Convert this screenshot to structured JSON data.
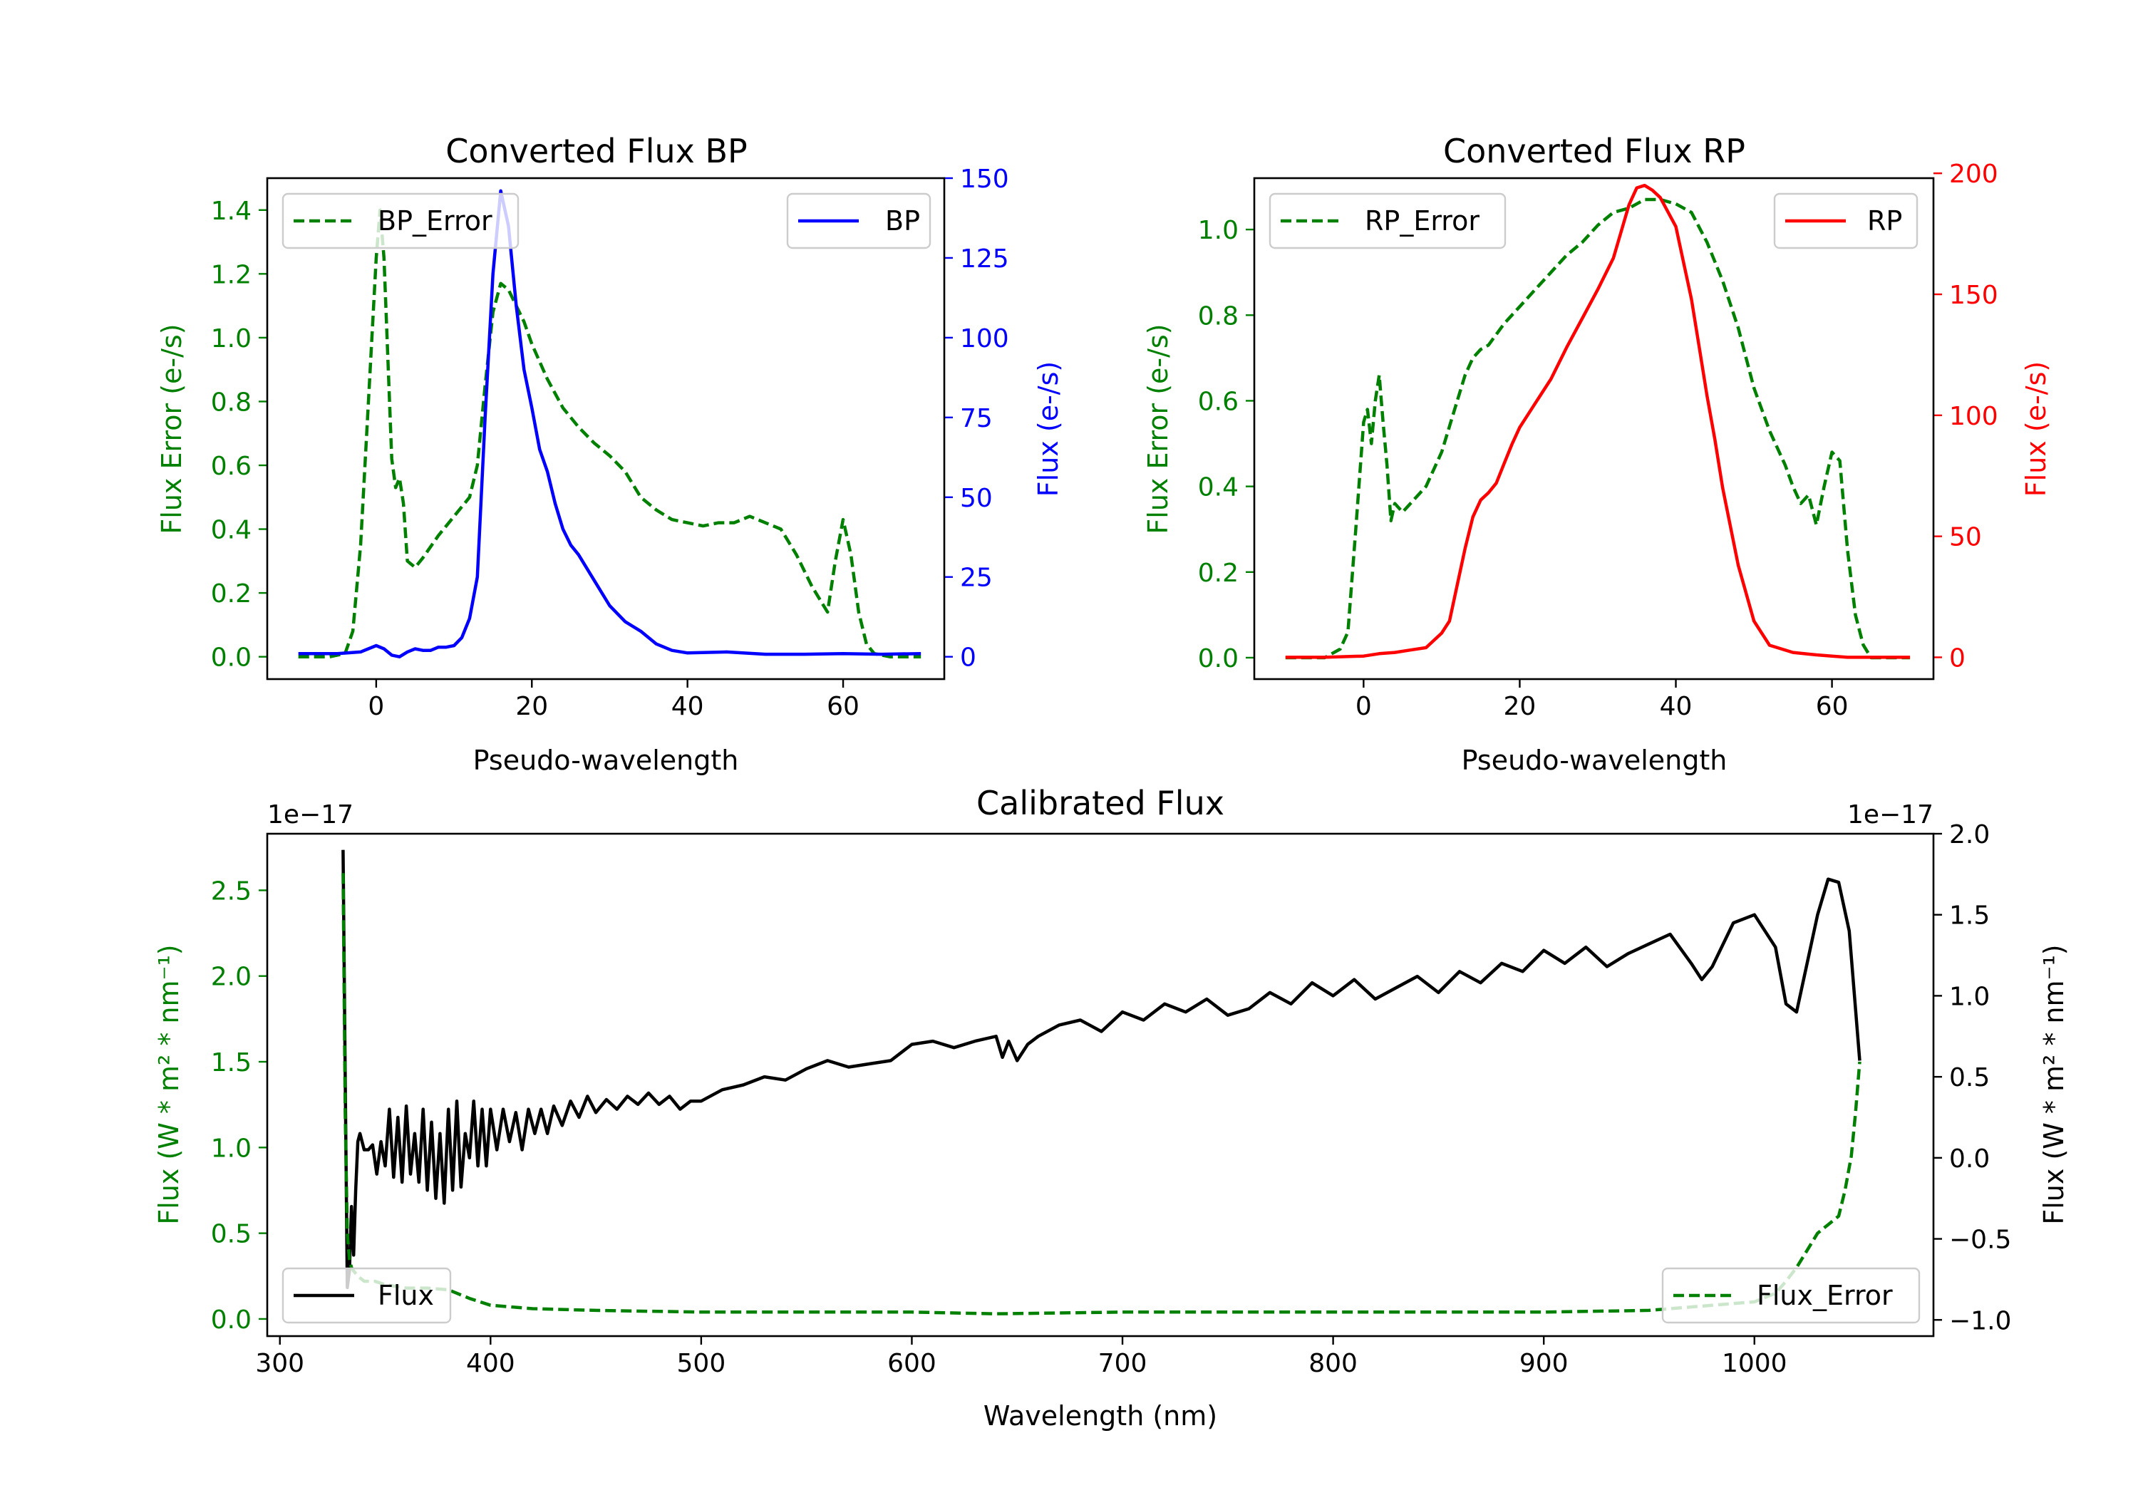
{
  "figure": {
    "colors": {
      "green": "#008000",
      "blue": "#0000ff",
      "red": "#ff0000",
      "black": "#000000"
    }
  },
  "chart_data": [
    {
      "id": "bp",
      "type": "line",
      "title": "Converted Flux BP",
      "xlabel": "Pseudo-wavelength",
      "ylabel_left": "Flux Error (e-/s)",
      "ylabel_right": "Flux (e-/s)",
      "xlim": [
        -14,
        73
      ],
      "ylim_left": [
        -0.07,
        1.5
      ],
      "ylim_right": [
        -7,
        150
      ],
      "xticks": [
        0,
        20,
        40,
        60
      ],
      "yticks_left": [
        0.0,
        0.2,
        0.4,
        0.6,
        0.8,
        1.0,
        1.2,
        1.4
      ],
      "yticks_left_labels": [
        "0.0",
        "0.2",
        "0.4",
        "0.6",
        "0.8",
        "1.0",
        "1.2",
        "1.4"
      ],
      "yticks_right": [
        0,
        25,
        50,
        75,
        100,
        125,
        150
      ],
      "yticks_right_labels": [
        "0",
        "25",
        "50",
        "75",
        "100",
        "125",
        "150"
      ],
      "legend_left": {
        "label": "BP_Error",
        "position": "upper left"
      },
      "legend_right": {
        "label": "BP",
        "position": "upper right"
      },
      "series": [
        {
          "name": "BP_Error",
          "axis": "left",
          "color": "#008000",
          "style": "dashed",
          "x": [
            -10,
            -6,
            -4,
            -3,
            -2,
            -1,
            0,
            0.5,
            1,
            2,
            2.5,
            3,
            3.5,
            4,
            5,
            6,
            8,
            10,
            12,
            13,
            14,
            15,
            16,
            17,
            18,
            19,
            20,
            22,
            24,
            26,
            28,
            30,
            32,
            34,
            36,
            38,
            40,
            42,
            44,
            46,
            48,
            50,
            52,
            54,
            56,
            57,
            58,
            59,
            60,
            61,
            62,
            63,
            64,
            66,
            70
          ],
          "values": [
            0,
            0,
            0.01,
            0.08,
            0.35,
            0.8,
            1.25,
            1.4,
            1.25,
            0.62,
            0.53,
            0.56,
            0.48,
            0.3,
            0.28,
            0.31,
            0.38,
            0.44,
            0.5,
            0.6,
            0.85,
            1.08,
            1.17,
            1.15,
            1.1,
            1.05,
            0.98,
            0.87,
            0.78,
            0.72,
            0.67,
            0.63,
            0.58,
            0.5,
            0.46,
            0.43,
            0.42,
            0.41,
            0.42,
            0.42,
            0.44,
            0.42,
            0.4,
            0.32,
            0.22,
            0.18,
            0.14,
            0.3,
            0.43,
            0.32,
            0.14,
            0.04,
            0.01,
            0,
            0
          ]
        },
        {
          "name": "BP",
          "axis": "right",
          "color": "#0000ff",
          "style": "solid",
          "x": [
            -10,
            -5,
            -2,
            0,
            1,
            2,
            3,
            4,
            5,
            6,
            7,
            8,
            9,
            10,
            11,
            12,
            13,
            14,
            15,
            16,
            17,
            18,
            19,
            20,
            21,
            22,
            23,
            24,
            25,
            26,
            27,
            28,
            30,
            32,
            34,
            36,
            38,
            40,
            45,
            50,
            55,
            60,
            65,
            70
          ],
          "values": [
            1,
            1,
            1.5,
            3.5,
            2.5,
            0.5,
            0,
            1.5,
            2.5,
            2,
            2,
            3,
            3,
            3.5,
            6,
            12,
            25,
            75,
            120,
            146,
            135,
            110,
            90,
            78,
            65,
            58,
            48,
            40,
            35,
            32,
            28,
            24,
            16,
            11,
            8,
            4,
            2,
            1.2,
            1.5,
            0.8,
            0.8,
            1,
            0.8,
            1
          ]
        }
      ]
    },
    {
      "id": "rp",
      "type": "line",
      "title": "Converted Flux RP",
      "xlabel": "Pseudo-wavelength",
      "ylabel_left": "Flux Error (e-/s)",
      "ylabel_right": "Flux (e-/s)",
      "xlim": [
        -14,
        73
      ],
      "ylim_left": [
        -0.05,
        1.12
      ],
      "ylim_right": [
        -9,
        198
      ],
      "xticks": [
        0,
        20,
        40,
        60
      ],
      "yticks_left": [
        0.0,
        0.2,
        0.4,
        0.6,
        0.8,
        1.0
      ],
      "yticks_left_labels": [
        "0.0",
        "0.2",
        "0.4",
        "0.6",
        "0.8",
        "1.0"
      ],
      "yticks_right": [
        0,
        50,
        100,
        150,
        200
      ],
      "yticks_right_labels": [
        "0",
        "50",
        "100",
        "150",
        "200"
      ],
      "legend_left": {
        "label": "RP_Error",
        "position": "upper left"
      },
      "legend_right": {
        "label": "RP",
        "position": "upper right"
      },
      "series": [
        {
          "name": "RP_Error",
          "axis": "left",
          "color": "#008000",
          "style": "dashed",
          "x": [
            -10,
            -5,
            -3,
            -2,
            -1,
            0,
            0.5,
            1,
            1.5,
            2,
            2.5,
            3,
            3.5,
            4,
            5,
            6,
            8,
            10,
            12,
            13,
            14,
            15,
            16,
            18,
            20,
            22,
            24,
            26,
            28,
            30,
            32,
            34,
            36,
            38,
            40,
            42,
            44,
            46,
            48,
            50,
            52,
            54,
            55,
            56,
            57,
            58,
            59,
            60,
            61,
            62,
            63,
            64,
            65,
            70
          ],
          "values": [
            0,
            0,
            0.02,
            0.06,
            0.3,
            0.55,
            0.58,
            0.5,
            0.6,
            0.66,
            0.55,
            0.45,
            0.32,
            0.36,
            0.34,
            0.36,
            0.4,
            0.48,
            0.6,
            0.66,
            0.7,
            0.72,
            0.73,
            0.78,
            0.82,
            0.86,
            0.9,
            0.94,
            0.97,
            1.01,
            1.04,
            1.05,
            1.07,
            1.07,
            1.06,
            1.04,
            0.97,
            0.88,
            0.77,
            0.63,
            0.53,
            0.45,
            0.4,
            0.36,
            0.38,
            0.31,
            0.4,
            0.48,
            0.46,
            0.25,
            0.1,
            0.03,
            0,
            0
          ]
        },
        {
          "name": "RP",
          "axis": "right",
          "color": "#ff0000",
          "style": "solid",
          "x": [
            -10,
            -5,
            0,
            2,
            4,
            6,
            8,
            10,
            11,
            12,
            13,
            14,
            15,
            16,
            17,
            18,
            19,
            20,
            22,
            24,
            26,
            28,
            30,
            32,
            34,
            35,
            36,
            37,
            38,
            40,
            42,
            43,
            44,
            45,
            46,
            48,
            50,
            52,
            55,
            58,
            60,
            62,
            65,
            70
          ],
          "values": [
            0,
            0,
            0.5,
            1.5,
            2,
            3,
            4,
            10,
            15,
            30,
            45,
            58,
            65,
            68,
            72,
            80,
            88,
            95,
            105,
            115,
            128,
            140,
            152,
            165,
            187,
            194,
            195,
            193,
            190,
            178,
            148,
            128,
            108,
            90,
            70,
            38,
            15,
            5,
            2,
            1,
            0.5,
            0,
            0,
            0
          ]
        }
      ]
    },
    {
      "id": "calibrated",
      "type": "line",
      "title": "Calibrated Flux",
      "xlabel": "Wavelength (nm)",
      "ylabel_left": "Flux (W * m² * nm⁻¹)",
      "ylabel_right": "Flux (W * m² * nm⁻¹)",
      "offset_left": "1e−17",
      "offset_right": "1e−17",
      "xlim": [
        294,
        1085
      ],
      "ylim_left": [
        -0.1,
        2.83
      ],
      "ylim_right": [
        -1.1,
        2.0
      ],
      "xticks": [
        300,
        400,
        500,
        600,
        700,
        800,
        900,
        1000
      ],
      "yticks_left": [
        0.0,
        0.5,
        1.0,
        1.5,
        2.0,
        2.5
      ],
      "yticks_left_labels": [
        "0.0",
        "0.5",
        "1.0",
        "1.5",
        "2.0",
        "2.5"
      ],
      "yticks_right": [
        -1.0,
        -0.5,
        0.0,
        0.5,
        1.0,
        1.5,
        2.0
      ],
      "yticks_right_labels": [
        "−1.0",
        "−0.5",
        "0.0",
        "0.5",
        "1.0",
        "1.5",
        "2.0"
      ],
      "legend_left": {
        "label": "Flux",
        "position": "lower left"
      },
      "legend_right": {
        "label": "Flux_Error",
        "position": "lower right"
      },
      "series": [
        {
          "name": "Flux",
          "axis": "right",
          "color": "#000000",
          "style": "solid",
          "x": [
            330,
            331,
            332,
            333,
            334,
            335,
            336,
            337,
            338,
            340,
            342,
            344,
            346,
            348,
            350,
            352,
            354,
            356,
            358,
            360,
            362,
            364,
            366,
            368,
            370,
            372,
            374,
            376,
            378,
            380,
            382,
            384,
            386,
            388,
            390,
            392,
            394,
            396,
            398,
            400,
            403,
            406,
            409,
            412,
            415,
            418,
            421,
            424,
            427,
            430,
            434,
            438,
            442,
            446,
            450,
            455,
            460,
            465,
            470,
            475,
            480,
            485,
            490,
            495,
            500,
            510,
            520,
            530,
            540,
            550,
            560,
            570,
            580,
            590,
            600,
            610,
            620,
            630,
            640,
            643,
            646,
            650,
            655,
            660,
            670,
            680,
            690,
            700,
            710,
            720,
            730,
            740,
            750,
            760,
            770,
            780,
            790,
            800,
            810,
            820,
            830,
            840,
            850,
            860,
            870,
            880,
            890,
            900,
            910,
            920,
            930,
            940,
            950,
            960,
            970,
            975,
            980,
            990,
            1000,
            1010,
            1015,
            1020,
            1025,
            1030,
            1035,
            1040,
            1045,
            1050
          ],
          "values": [
            1.9,
            0.5,
            -0.8,
            -0.7,
            -0.3,
            -0.6,
            -0.2,
            0.1,
            0.15,
            0.05,
            0.05,
            0.08,
            -0.1,
            0.1,
            -0.05,
            0.3,
            -0.12,
            0.25,
            -0.15,
            0.32,
            -0.1,
            0.15,
            -0.15,
            0.3,
            -0.2,
            0.22,
            -0.25,
            0.15,
            -0.28,
            0.3,
            -0.2,
            0.35,
            -0.18,
            0.15,
            0.0,
            0.35,
            -0.05,
            0.3,
            -0.05,
            0.3,
            0.05,
            0.3,
            0.1,
            0.28,
            0.05,
            0.3,
            0.15,
            0.3,
            0.15,
            0.32,
            0.2,
            0.35,
            0.25,
            0.38,
            0.28,
            0.36,
            0.3,
            0.38,
            0.33,
            0.4,
            0.33,
            0.38,
            0.3,
            0.35,
            0.35,
            0.42,
            0.45,
            0.5,
            0.48,
            0.55,
            0.6,
            0.56,
            0.58,
            0.6,
            0.7,
            0.72,
            0.68,
            0.72,
            0.75,
            0.62,
            0.72,
            0.6,
            0.7,
            0.75,
            0.82,
            0.85,
            0.78,
            0.9,
            0.85,
            0.95,
            0.9,
            0.98,
            0.88,
            0.92,
            1.02,
            0.95,
            1.08,
            1.0,
            1.1,
            0.98,
            1.05,
            1.12,
            1.02,
            1.15,
            1.08,
            1.2,
            1.15,
            1.28,
            1.2,
            1.3,
            1.18,
            1.26,
            1.32,
            1.38,
            1.2,
            1.1,
            1.18,
            1.45,
            1.5,
            1.3,
            0.95,
            0.9,
            1.2,
            1.5,
            1.72,
            1.7,
            1.4,
            0.6
          ]
        },
        {
          "name": "Flux_Error",
          "axis": "left",
          "color": "#008000",
          "style": "dashed",
          "x": [
            330,
            331,
            332,
            333,
            334,
            335,
            337,
            340,
            345,
            350,
            360,
            370,
            380,
            390,
            400,
            420,
            450,
            500,
            550,
            600,
            640,
            700,
            800,
            900,
            950,
            1000,
            1010,
            1015,
            1020,
            1025,
            1030,
            1035,
            1040,
            1043,
            1046,
            1048,
            1050
          ],
          "values": [
            2.6,
            1.2,
            0.5,
            0.35,
            0.3,
            0.28,
            0.25,
            0.22,
            0.22,
            0.2,
            0.18,
            0.18,
            0.17,
            0.12,
            0.08,
            0.06,
            0.05,
            0.04,
            0.04,
            0.04,
            0.03,
            0.04,
            0.04,
            0.04,
            0.05,
            0.1,
            0.15,
            0.22,
            0.3,
            0.4,
            0.5,
            0.55,
            0.6,
            0.75,
            0.95,
            1.2,
            1.5
          ]
        }
      ]
    }
  ]
}
